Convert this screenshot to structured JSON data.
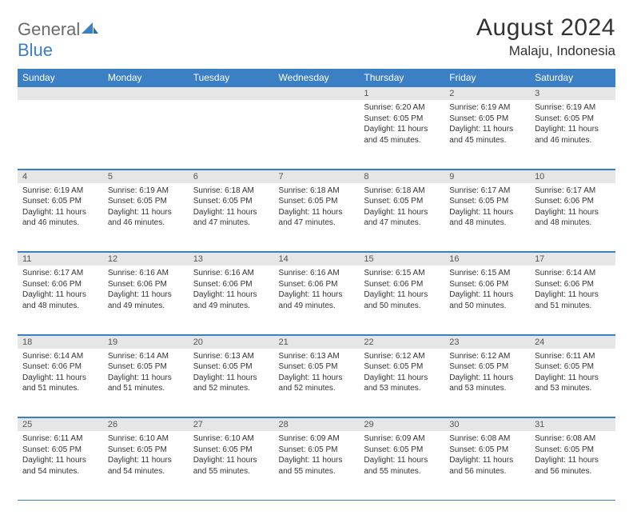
{
  "brand": {
    "name1": "General",
    "name2": "Blue"
  },
  "title": "August 2024",
  "location": "Malaju, Indonesia",
  "colors": {
    "header_bg": "#3b7fc4",
    "header_text": "#ffffff",
    "daynum_bg": "#e6e6e6",
    "cell_border": "#3b7fc4",
    "body_text": "#333333",
    "logo_gray": "#6b6b6b",
    "logo_blue": "#3b7fc4"
  },
  "typography": {
    "title_fontsize": 30,
    "location_fontsize": 17,
    "dayheader_fontsize": 12,
    "daynum_fontsize": 11,
    "cell_fontsize": 10
  },
  "day_headers": [
    "Sunday",
    "Monday",
    "Tuesday",
    "Wednesday",
    "Thursday",
    "Friday",
    "Saturday"
  ],
  "weeks": [
    [
      null,
      null,
      null,
      null,
      {
        "n": "1",
        "sunrise": "Sunrise: 6:20 AM",
        "sunset": "Sunset: 6:05 PM",
        "day": "Daylight: 11 hours and 45 minutes."
      },
      {
        "n": "2",
        "sunrise": "Sunrise: 6:19 AM",
        "sunset": "Sunset: 6:05 PM",
        "day": "Daylight: 11 hours and 45 minutes."
      },
      {
        "n": "3",
        "sunrise": "Sunrise: 6:19 AM",
        "sunset": "Sunset: 6:05 PM",
        "day": "Daylight: 11 hours and 46 minutes."
      }
    ],
    [
      {
        "n": "4",
        "sunrise": "Sunrise: 6:19 AM",
        "sunset": "Sunset: 6:05 PM",
        "day": "Daylight: 11 hours and 46 minutes."
      },
      {
        "n": "5",
        "sunrise": "Sunrise: 6:19 AM",
        "sunset": "Sunset: 6:05 PM",
        "day": "Daylight: 11 hours and 46 minutes."
      },
      {
        "n": "6",
        "sunrise": "Sunrise: 6:18 AM",
        "sunset": "Sunset: 6:05 PM",
        "day": "Daylight: 11 hours and 47 minutes."
      },
      {
        "n": "7",
        "sunrise": "Sunrise: 6:18 AM",
        "sunset": "Sunset: 6:05 PM",
        "day": "Daylight: 11 hours and 47 minutes."
      },
      {
        "n": "8",
        "sunrise": "Sunrise: 6:18 AM",
        "sunset": "Sunset: 6:05 PM",
        "day": "Daylight: 11 hours and 47 minutes."
      },
      {
        "n": "9",
        "sunrise": "Sunrise: 6:17 AM",
        "sunset": "Sunset: 6:05 PM",
        "day": "Daylight: 11 hours and 48 minutes."
      },
      {
        "n": "10",
        "sunrise": "Sunrise: 6:17 AM",
        "sunset": "Sunset: 6:06 PM",
        "day": "Daylight: 11 hours and 48 minutes."
      }
    ],
    [
      {
        "n": "11",
        "sunrise": "Sunrise: 6:17 AM",
        "sunset": "Sunset: 6:06 PM",
        "day": "Daylight: 11 hours and 48 minutes."
      },
      {
        "n": "12",
        "sunrise": "Sunrise: 6:16 AM",
        "sunset": "Sunset: 6:06 PM",
        "day": "Daylight: 11 hours and 49 minutes."
      },
      {
        "n": "13",
        "sunrise": "Sunrise: 6:16 AM",
        "sunset": "Sunset: 6:06 PM",
        "day": "Daylight: 11 hours and 49 minutes."
      },
      {
        "n": "14",
        "sunrise": "Sunrise: 6:16 AM",
        "sunset": "Sunset: 6:06 PM",
        "day": "Daylight: 11 hours and 49 minutes."
      },
      {
        "n": "15",
        "sunrise": "Sunrise: 6:15 AM",
        "sunset": "Sunset: 6:06 PM",
        "day": "Daylight: 11 hours and 50 minutes."
      },
      {
        "n": "16",
        "sunrise": "Sunrise: 6:15 AM",
        "sunset": "Sunset: 6:06 PM",
        "day": "Daylight: 11 hours and 50 minutes."
      },
      {
        "n": "17",
        "sunrise": "Sunrise: 6:14 AM",
        "sunset": "Sunset: 6:06 PM",
        "day": "Daylight: 11 hours and 51 minutes."
      }
    ],
    [
      {
        "n": "18",
        "sunrise": "Sunrise: 6:14 AM",
        "sunset": "Sunset: 6:06 PM",
        "day": "Daylight: 11 hours and 51 minutes."
      },
      {
        "n": "19",
        "sunrise": "Sunrise: 6:14 AM",
        "sunset": "Sunset: 6:05 PM",
        "day": "Daylight: 11 hours and 51 minutes."
      },
      {
        "n": "20",
        "sunrise": "Sunrise: 6:13 AM",
        "sunset": "Sunset: 6:05 PM",
        "day": "Daylight: 11 hours and 52 minutes."
      },
      {
        "n": "21",
        "sunrise": "Sunrise: 6:13 AM",
        "sunset": "Sunset: 6:05 PM",
        "day": "Daylight: 11 hours and 52 minutes."
      },
      {
        "n": "22",
        "sunrise": "Sunrise: 6:12 AM",
        "sunset": "Sunset: 6:05 PM",
        "day": "Daylight: 11 hours and 53 minutes."
      },
      {
        "n": "23",
        "sunrise": "Sunrise: 6:12 AM",
        "sunset": "Sunset: 6:05 PM",
        "day": "Daylight: 11 hours and 53 minutes."
      },
      {
        "n": "24",
        "sunrise": "Sunrise: 6:11 AM",
        "sunset": "Sunset: 6:05 PM",
        "day": "Daylight: 11 hours and 53 minutes."
      }
    ],
    [
      {
        "n": "25",
        "sunrise": "Sunrise: 6:11 AM",
        "sunset": "Sunset: 6:05 PM",
        "day": "Daylight: 11 hours and 54 minutes."
      },
      {
        "n": "26",
        "sunrise": "Sunrise: 6:10 AM",
        "sunset": "Sunset: 6:05 PM",
        "day": "Daylight: 11 hours and 54 minutes."
      },
      {
        "n": "27",
        "sunrise": "Sunrise: 6:10 AM",
        "sunset": "Sunset: 6:05 PM",
        "day": "Daylight: 11 hours and 55 minutes."
      },
      {
        "n": "28",
        "sunrise": "Sunrise: 6:09 AM",
        "sunset": "Sunset: 6:05 PM",
        "day": "Daylight: 11 hours and 55 minutes."
      },
      {
        "n": "29",
        "sunrise": "Sunrise: 6:09 AM",
        "sunset": "Sunset: 6:05 PM",
        "day": "Daylight: 11 hours and 55 minutes."
      },
      {
        "n": "30",
        "sunrise": "Sunrise: 6:08 AM",
        "sunset": "Sunset: 6:05 PM",
        "day": "Daylight: 11 hours and 56 minutes."
      },
      {
        "n": "31",
        "sunrise": "Sunrise: 6:08 AM",
        "sunset": "Sunset: 6:05 PM",
        "day": "Daylight: 11 hours and 56 minutes."
      }
    ]
  ]
}
